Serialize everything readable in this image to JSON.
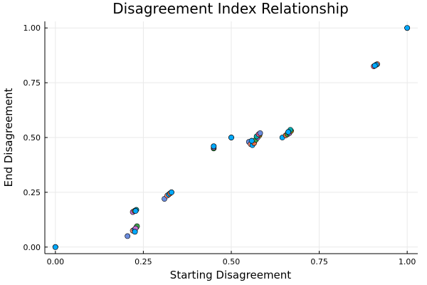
{
  "chart_data": {
    "type": "scatter",
    "title": "Disagreement Index Relationship",
    "xlabel": "Starting Disagreement",
    "ylabel": "End Disagreement",
    "xlim": [
      -0.03,
      1.03
    ],
    "ylim": [
      -0.03,
      1.03
    ],
    "xticks": [
      0.0,
      0.25,
      0.5,
      0.75,
      1.0
    ],
    "yticks": [
      0.0,
      0.25,
      0.5,
      0.75,
      1.0
    ],
    "xtick_labels": [
      "0.00",
      "0.25",
      "0.50",
      "0.75",
      "1.00"
    ],
    "ytick_labels": [
      "0.00",
      "0.25",
      "0.50",
      "0.75",
      "1.00"
    ],
    "grid": true,
    "legend": false,
    "colors": [
      "#00a9ff",
      "#e26f46",
      "#3da44d",
      "#c271d2",
      "#ac8d18",
      "#00a9ad",
      "#ed5e93",
      "#6b8cdd",
      "#ff8f7b"
    ],
    "series": [
      {
        "x": [
          0.0,
          0.0,
          0.0
        ],
        "y": [
          0.0,
          0.0,
          0.0
        ]
      },
      {
        "x": [
          1.0,
          1.0
        ],
        "y": [
          1.0,
          1.0
        ]
      },
      {
        "x": [
          0.905,
          0.91,
          0.915,
          0.912,
          0.908
        ],
        "y": [
          0.825,
          0.83,
          0.835,
          0.832,
          0.828
        ]
      },
      {
        "x": [
          0.45,
          0.45,
          0.45
        ],
        "y": [
          0.45,
          0.455,
          0.46
        ]
      },
      {
        "x": [
          0.5,
          0.5
        ],
        "y": [
          0.5,
          0.5
        ]
      },
      {
        "x": [
          0.55,
          0.555,
          0.56,
          0.565,
          0.57,
          0.575,
          0.58,
          0.572,
          0.578,
          0.582,
          0.558
        ],
        "y": [
          0.48,
          0.47,
          0.465,
          0.475,
          0.49,
          0.5,
          0.51,
          0.505,
          0.515,
          0.52,
          0.485
        ]
      },
      {
        "x": [
          0.645,
          0.655,
          0.66,
          0.665,
          0.67,
          0.668,
          0.662
        ],
        "y": [
          0.5,
          0.51,
          0.515,
          0.52,
          0.53,
          0.535,
          0.525
        ]
      },
      {
        "x": [
          0.31,
          0.318,
          0.322,
          0.326,
          0.33
        ],
        "y": [
          0.22,
          0.235,
          0.24,
          0.245,
          0.25
        ]
      },
      {
        "x": [
          0.22,
          0.225,
          0.23,
          0.228
        ],
        "y": [
          0.16,
          0.165,
          0.17,
          0.165
        ]
      },
      {
        "x": [
          0.205,
          0.22,
          0.225,
          0.23,
          0.232,
          0.228,
          0.226
        ],
        "y": [
          0.05,
          0.075,
          0.08,
          0.09,
          0.095,
          0.085,
          0.07
        ]
      }
    ]
  }
}
